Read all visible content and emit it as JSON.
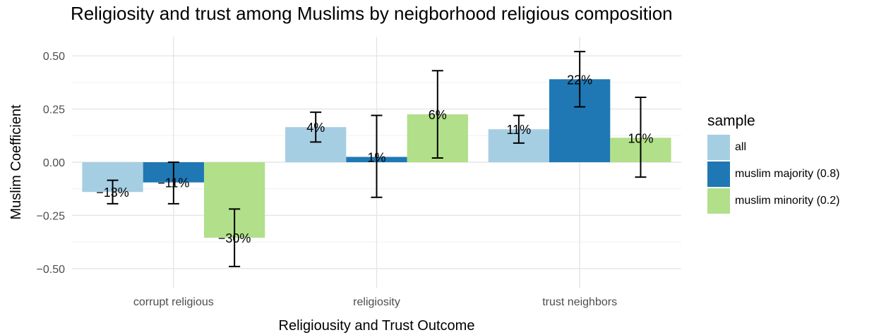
{
  "chart_data": {
    "type": "bar",
    "title": "Religiosity and trust among Muslims by neigborhood religious composition",
    "xlabel": "Religiousity and Trust Outcome",
    "ylabel": "Muslim Coefficient",
    "categories": [
      "corrupt religious",
      "religiosity",
      "trust neighbors"
    ],
    "ylim": [
      -0.5,
      0.5
    ],
    "yticks": [
      -0.5,
      -0.25,
      0.0,
      0.25,
      0.5
    ],
    "ytick_labels": [
      "−0.50",
      "−0.25",
      "0.00",
      "0.25",
      "0.50"
    ],
    "grid": true,
    "legend": {
      "title": "sample",
      "position": "right"
    },
    "series": [
      {
        "name": "all",
        "color": "#a6cee3",
        "values": [
          -0.14,
          0.165,
          0.155
        ],
        "ci_low": [
          -0.195,
          0.095,
          0.09
        ],
        "ci_high": [
          -0.085,
          0.235,
          0.22
        ],
        "labels": [
          "−13%",
          "4%",
          "11%"
        ]
      },
      {
        "name": "muslim majority  (0.8)",
        "color": "#1f78b4",
        "values": [
          -0.095,
          0.025,
          0.39
        ],
        "ci_low": [
          -0.195,
          -0.165,
          0.26
        ],
        "ci_high": [
          0.0,
          0.22,
          0.52
        ],
        "labels": [
          "−11%",
          "1%",
          "22%"
        ]
      },
      {
        "name": "muslim minority (0.2)",
        "color": "#b2df8a",
        "values": [
          -0.355,
          0.225,
          0.115
        ],
        "ci_low": [
          -0.49,
          0.02,
          -0.07
        ],
        "ci_high": [
          -0.22,
          0.43,
          0.305
        ],
        "labels": [
          "−30%",
          "6%",
          "10%"
        ]
      }
    ]
  }
}
